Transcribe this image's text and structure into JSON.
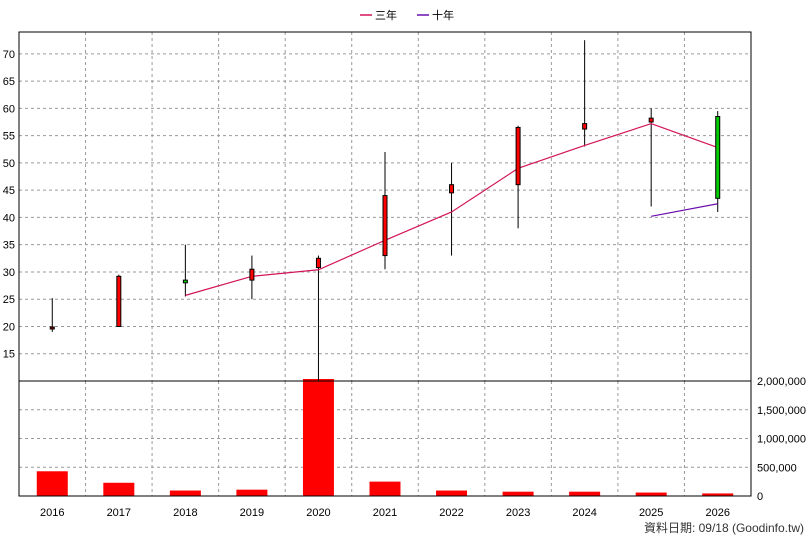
{
  "chart_data": {
    "type": "candlestick",
    "legend_position": "top-center",
    "grid": true,
    "x_categories": [
      "2016",
      "2017",
      "2018",
      "2019",
      "2020",
      "2021",
      "2022",
      "2023",
      "2024",
      "2025",
      "2026"
    ],
    "price_axis": {
      "ylim": [
        10,
        74
      ],
      "ticks": [
        15,
        20,
        25,
        30,
        35,
        40,
        45,
        50,
        55,
        60,
        65,
        70
      ]
    },
    "volume_axis": {
      "ylim": [
        0,
        2000000
      ],
      "ticks": [
        0,
        500000,
        1000000,
        1500000,
        2000000
      ],
      "tick_labels": [
        "0",
        "500,000",
        "1,000,000",
        "1,500,000",
        "2,000,000"
      ]
    },
    "candles": [
      {
        "year": "2016",
        "open": 19.7,
        "high": 25.2,
        "low": 19.0,
        "close": 19.9,
        "color": "#b00000"
      },
      {
        "year": "2017",
        "open": 20.0,
        "high": 29.5,
        "low": 19.9,
        "close": 29.2,
        "color": "#ff0000"
      },
      {
        "year": "2018",
        "open": 28.5,
        "high": 35.0,
        "low": 25.5,
        "close": 28.0,
        "color": "#00cc00"
      },
      {
        "year": "2019",
        "open": 28.5,
        "high": 33.0,
        "low": 25.0,
        "close": 30.5,
        "color": "#ff0000"
      },
      {
        "year": "2020",
        "open": 30.8,
        "high": 33.0,
        "low": 10.0,
        "close": 32.5,
        "color": "#ff0000"
      },
      {
        "year": "2021",
        "open": 33.0,
        "high": 52.0,
        "low": 30.5,
        "close": 44.0,
        "color": "#ff0000"
      },
      {
        "year": "2022",
        "open": 44.5,
        "high": 50.0,
        "low": 33.0,
        "close": 46.0,
        "color": "#ff0000"
      },
      {
        "year": "2023",
        "open": 46.0,
        "high": 56.8,
        "low": 38.0,
        "close": 56.5,
        "color": "#ff0000"
      },
      {
        "year": "2024",
        "open": 56.2,
        "high": 72.5,
        "low": 53.0,
        "close": 57.2,
        "color": "#ff0000"
      },
      {
        "year": "2025",
        "open": 57.5,
        "high": 60.0,
        "low": 42.0,
        "close": 58.2,
        "color": "#ff0000"
      },
      {
        "year": "2026",
        "open": 58.5,
        "high": 59.5,
        "low": 41.0,
        "close": 43.5,
        "color": "#00cc00"
      }
    ],
    "volume": [
      {
        "year": "2016",
        "value": 430000
      },
      {
        "year": "2017",
        "value": 230000
      },
      {
        "year": "2018",
        "value": 95000
      },
      {
        "year": "2019",
        "value": 110000
      },
      {
        "year": "2020",
        "value": 2050000
      },
      {
        "year": "2021",
        "value": 250000
      },
      {
        "year": "2022",
        "value": 95000
      },
      {
        "year": "2023",
        "value": 75000
      },
      {
        "year": "2024",
        "value": 75000
      },
      {
        "year": "2025",
        "value": 60000
      },
      {
        "year": "2026",
        "value": 45000
      }
    ],
    "volume_color": "#ff0000",
    "series": [
      {
        "name": "三年",
        "color": "#d4145a",
        "points": [
          [
            "2018",
            25.7
          ],
          [
            "2019",
            29.2
          ],
          [
            "2020",
            30.4
          ],
          [
            "2021",
            35.8
          ],
          [
            "2022",
            41.0
          ],
          [
            "2023",
            49.0
          ],
          [
            "2024",
            53.2
          ],
          [
            "2025",
            57.2
          ],
          [
            "2026",
            52.8
          ]
        ]
      },
      {
        "name": "十年",
        "color": "#6a0dad",
        "points": [
          [
            "2025",
            40.2
          ],
          [
            "2026",
            42.5
          ]
        ]
      }
    ]
  },
  "source_text": "資料日期: 09/18  (Goodinfo.tw)"
}
